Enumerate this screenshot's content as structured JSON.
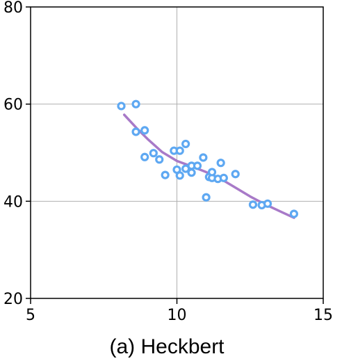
{
  "chart_data": {
    "type": "scatter",
    "caption": "(a) Heckbert",
    "xlim": [
      5,
      15
    ],
    "ylim": [
      20,
      80
    ],
    "xticks": [
      "5",
      "10",
      "15"
    ],
    "yticks": [
      "20",
      "40",
      "60",
      "80"
    ],
    "grid": true,
    "scatter_color": "#5ea8f2",
    "line_color": "#a87ac8",
    "points": [
      {
        "x": 8.1,
        "y": 59.6
      },
      {
        "x": 8.6,
        "y": 60.0
      },
      {
        "x": 8.6,
        "y": 54.3
      },
      {
        "x": 8.9,
        "y": 54.6
      },
      {
        "x": 8.9,
        "y": 49.1
      },
      {
        "x": 9.2,
        "y": 49.9
      },
      {
        "x": 9.4,
        "y": 48.6
      },
      {
        "x": 9.6,
        "y": 45.4
      },
      {
        "x": 9.9,
        "y": 50.4
      },
      {
        "x": 10.0,
        "y": 46.5
      },
      {
        "x": 10.1,
        "y": 45.3
      },
      {
        "x": 10.1,
        "y": 50.4
      },
      {
        "x": 10.3,
        "y": 46.7
      },
      {
        "x": 10.3,
        "y": 51.8
      },
      {
        "x": 10.5,
        "y": 45.9
      },
      {
        "x": 10.5,
        "y": 47.3
      },
      {
        "x": 10.7,
        "y": 47.3
      },
      {
        "x": 10.9,
        "y": 49.0
      },
      {
        "x": 11.0,
        "y": 40.8
      },
      {
        "x": 11.1,
        "y": 45.0
      },
      {
        "x": 11.2,
        "y": 44.8
      },
      {
        "x": 11.2,
        "y": 46.0
      },
      {
        "x": 11.4,
        "y": 44.6
      },
      {
        "x": 11.5,
        "y": 47.9
      },
      {
        "x": 11.6,
        "y": 44.8
      },
      {
        "x": 12.0,
        "y": 45.6
      },
      {
        "x": 12.6,
        "y": 39.3
      },
      {
        "x": 12.9,
        "y": 39.2
      },
      {
        "x": 13.1,
        "y": 39.5
      },
      {
        "x": 14.0,
        "y": 37.4
      }
    ],
    "trend": [
      {
        "x": 8.2,
        "y": 57.8
      },
      {
        "x": 8.6,
        "y": 55.2
      },
      {
        "x": 9.0,
        "y": 52.8
      },
      {
        "x": 9.5,
        "y": 50.1
      },
      {
        "x": 10.0,
        "y": 48.3
      },
      {
        "x": 10.5,
        "y": 47.2
      },
      {
        "x": 11.0,
        "y": 46.0
      },
      {
        "x": 11.5,
        "y": 44.6
      },
      {
        "x": 12.0,
        "y": 42.8
      },
      {
        "x": 12.5,
        "y": 41.0
      },
      {
        "x": 13.0,
        "y": 39.4
      },
      {
        "x": 13.5,
        "y": 38.0
      },
      {
        "x": 14.0,
        "y": 36.6
      }
    ]
  }
}
